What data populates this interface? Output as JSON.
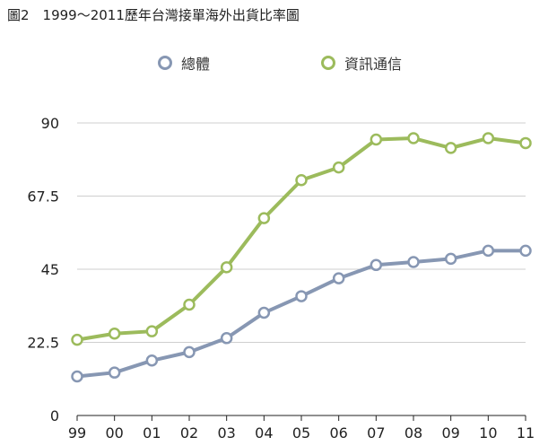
{
  "title": "圖2　1999～2011歷年台灣接單海外出貨比率圖",
  "colors": {
    "total": "#8797b3",
    "ict": "#9cbb5c",
    "grid": "#cfcfcf",
    "axis": "#222222"
  },
  "chart_data": {
    "type": "line",
    "title": "圖2　1999～2011歷年台灣接單海外出貨比率圖",
    "x": [
      "99",
      "00",
      "01",
      "02",
      "03",
      "04",
      "05",
      "06",
      "07",
      "08",
      "09",
      "10",
      "11"
    ],
    "yticks": [
      "0",
      "22.5",
      "45",
      "67.5",
      "90"
    ],
    "ylim": [
      0,
      90
    ],
    "grid": true,
    "legend_position": "top",
    "series": [
      {
        "name": "總體",
        "color": "#8797b3",
        "values": [
          12,
          13.2,
          16.9,
          19.5,
          23.8,
          31.6,
          36.7,
          42.2,
          46.3,
          47.2,
          48.2,
          50.7,
          50.7
        ]
      },
      {
        "name": "資訊通信",
        "color": "#9cbb5c",
        "values": [
          23.3,
          25.2,
          25.9,
          34.1,
          45.6,
          60.7,
          72.4,
          76.3,
          84.9,
          85.3,
          82.3,
          85.3,
          83.8
        ]
      }
    ]
  }
}
